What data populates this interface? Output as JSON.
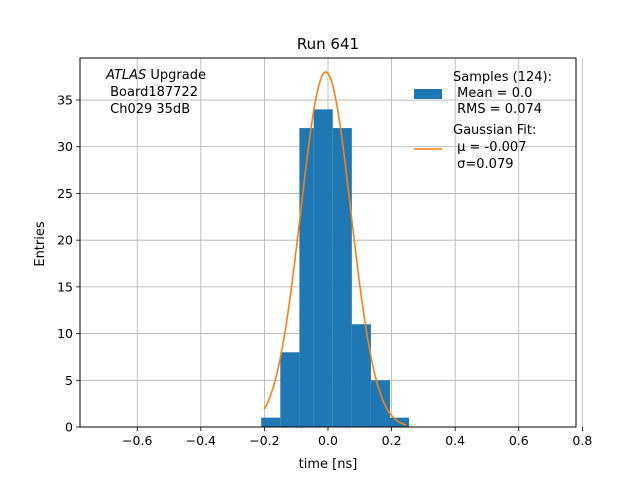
{
  "chart_data": {
    "type": "bar",
    "title": "Run 641",
    "xlabel": "time [ns]",
    "ylabel": "Entries",
    "xlim": [
      -0.78,
      0.78
    ],
    "ylim": [
      0,
      39.5
    ],
    "grid": true,
    "x_ticks": [
      -0.6,
      -0.4,
      -0.2,
      0.0,
      0.2,
      0.4,
      0.6,
      0.8
    ],
    "x_tick_labels": [
      "−0.6",
      "−0.4",
      "−0.2",
      "0.0",
      "0.2",
      "0.4",
      "0.6",
      "0.8"
    ],
    "y_ticks": [
      0,
      5,
      10,
      15,
      20,
      25,
      30,
      35
    ],
    "y_tick_labels": [
      "0",
      "5",
      "10",
      "15",
      "20",
      "25",
      "30",
      "35"
    ],
    "histogram": {
      "name": "Samples (124):",
      "color": "#1f77b4",
      "bin_edges": [
        -0.21,
        -0.15,
        -0.09,
        -0.045,
        0.015,
        0.075,
        0.135,
        0.195,
        0.255
      ],
      "counts": [
        1,
        8,
        32,
        34,
        32,
        11,
        5,
        1
      ]
    },
    "fit": {
      "name": "Gaussian Fit:",
      "color": "#ff7f0e",
      "mu": -0.007,
      "sigma": 0.079,
      "amplitude": 38,
      "x_range": [
        -0.2,
        0.245
      ]
    },
    "legend": {
      "placement": "top-right",
      "hist_lines": [
        "Samples (124):",
        " Mean = 0.0",
        " RMS = 0.074"
      ],
      "fit_lines": [
        "Gaussian Fit:",
        " μ = -0.007",
        " σ=0.079"
      ]
    },
    "annotation": {
      "italic": "ATLAS",
      "rest": " Upgrade",
      "lines": [
        " Board187722",
        " Ch029 35dB"
      ]
    }
  }
}
